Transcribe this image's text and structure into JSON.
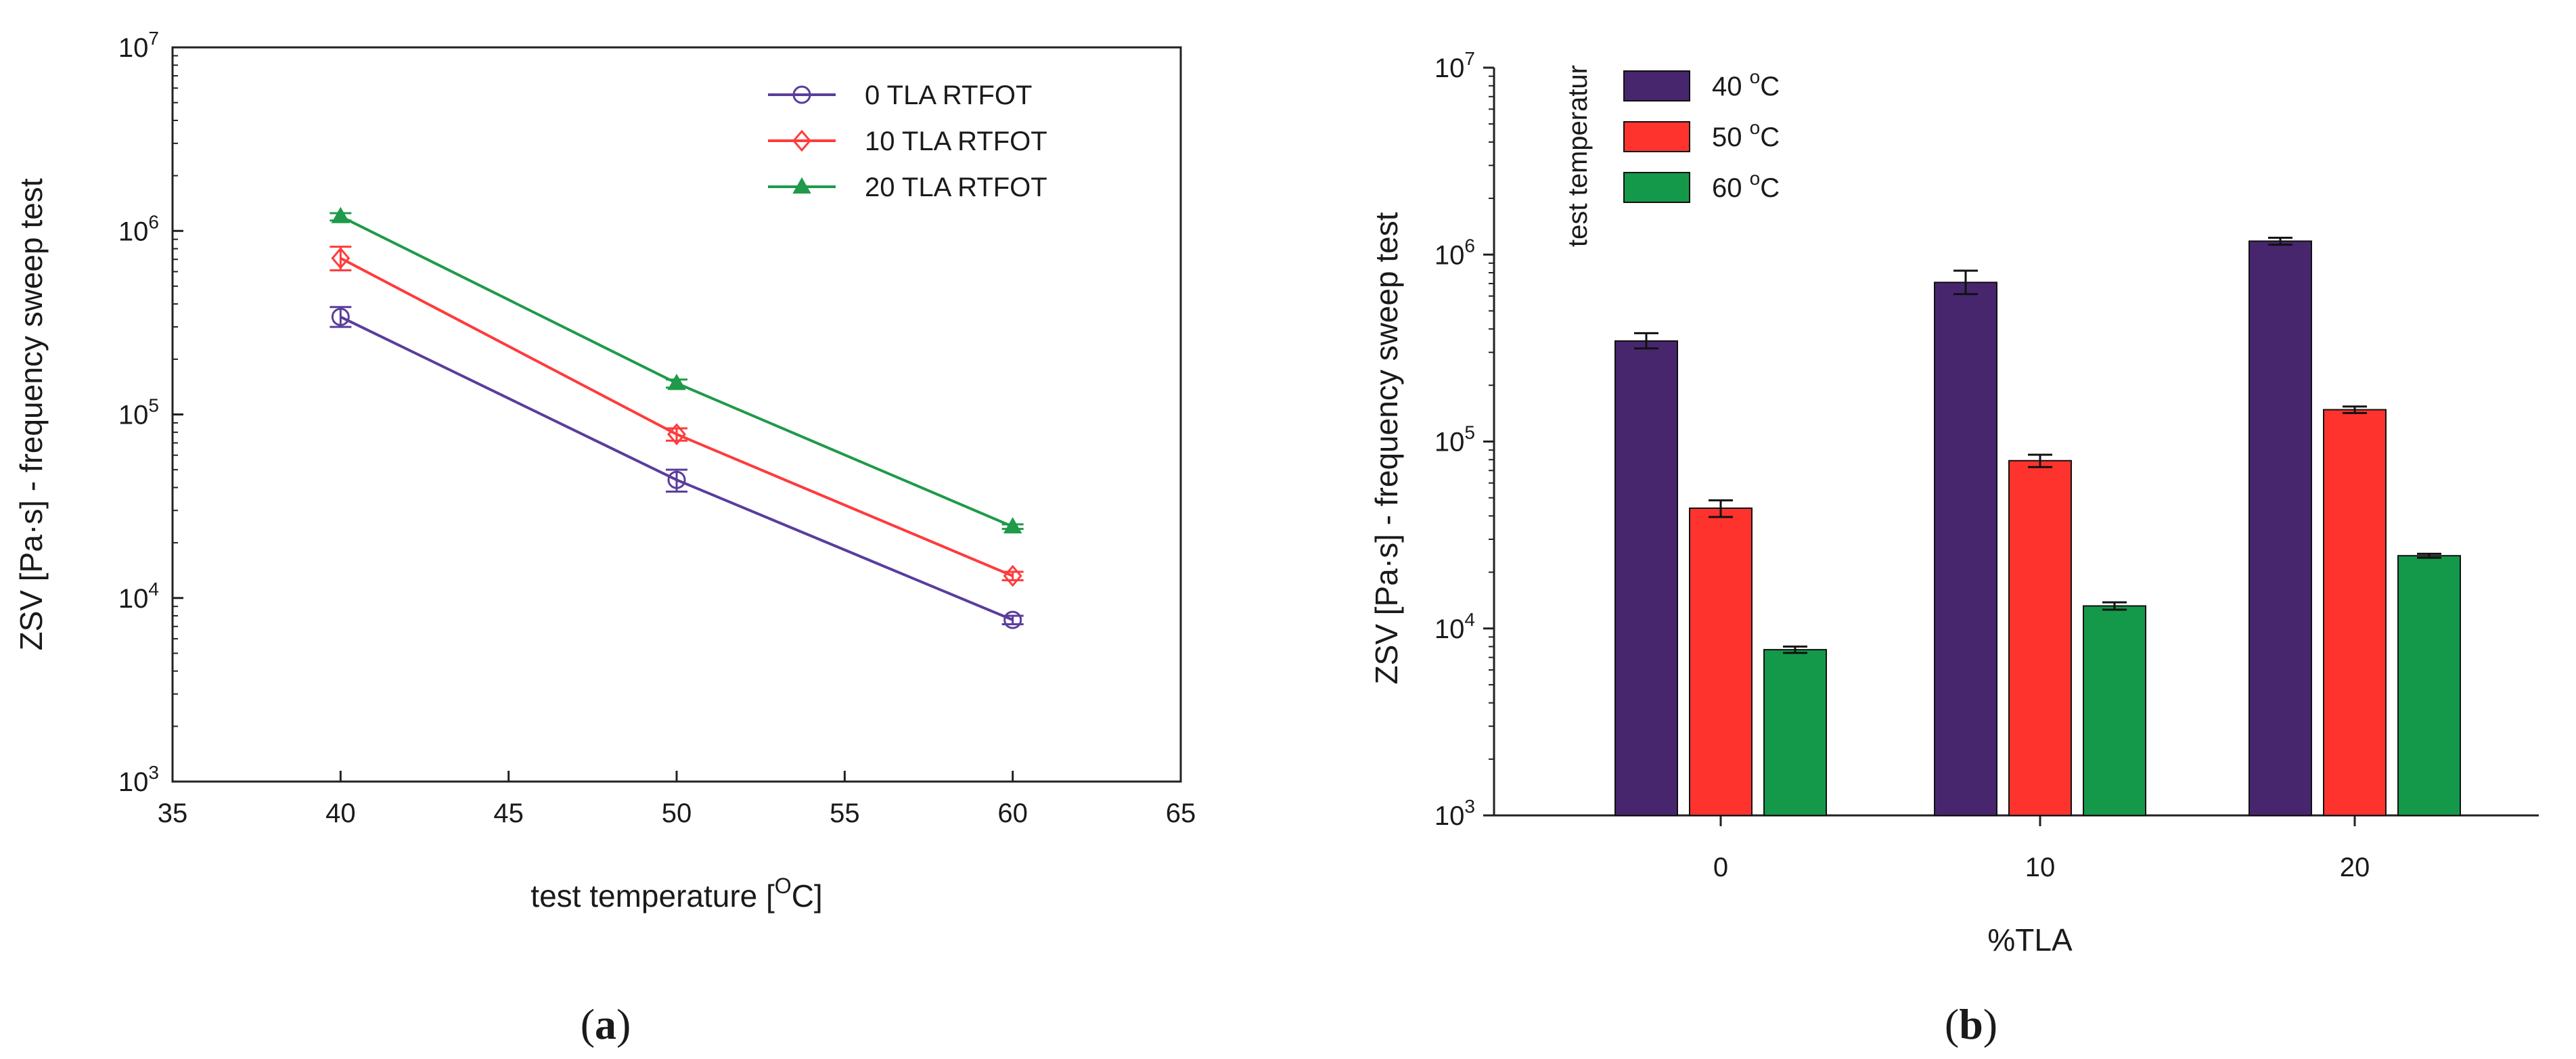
{
  "panels": [
    {
      "label": "a"
    },
    {
      "label": "b"
    }
  ],
  "chart_data": [
    {
      "type": "line",
      "xlabel": "test temperature [",
      "xlabel_unit_sup": "O",
      "xlabel_unit_tail": "C]",
      "ylabel": "ZSV [Pa·s] - frequency sweep test",
      "xlim": [
        35,
        65
      ],
      "xticks": [
        35,
        40,
        45,
        50,
        55,
        60,
        65
      ],
      "yscale": "log",
      "ylim": [
        1000,
        10000000
      ],
      "yticks": [
        {
          "base": "10",
          "exp": "3",
          "value": 1000
        },
        {
          "base": "10",
          "exp": "4",
          "value": 10000
        },
        {
          "base": "10",
          "exp": "5",
          "value": 100000
        },
        {
          "base": "10",
          "exp": "6",
          "value": 1000000
        },
        {
          "base": "10",
          "exp": "7",
          "value": 10000000
        }
      ],
      "legend_position": "top-right",
      "grid": false,
      "x": [
        40,
        50,
        60
      ],
      "series": [
        {
          "name": "0 TLA RTFOT",
          "color": "#5a3d9c",
          "marker": "circle",
          "values": [
            340000,
            44000,
            7600
          ],
          "error_low": [
            300000,
            38000,
            7200
          ],
          "error_high": [
            385000,
            50000,
            8000
          ]
        },
        {
          "name": "10 TLA RTFOT",
          "color": "#ff3b3b",
          "marker": "diamond",
          "values": [
            710000,
            78000,
            13200
          ],
          "error_low": [
            610000,
            72000,
            12500
          ],
          "error_high": [
            820000,
            84000,
            13900
          ]
        },
        {
          "name": "20 TLA RTFOT",
          "color": "#1f9a4a",
          "marker": "triangle",
          "values": [
            1200000,
            148000,
            24500
          ],
          "error_low": [
            1140000,
            140000,
            23800
          ],
          "error_high": [
            1250000,
            155000,
            25200
          ]
        }
      ]
    },
    {
      "type": "bar",
      "xlabel": "%TLA",
      "ylabel": "ZSV [Pa·s] - frequency sweep test",
      "legend_title": "test temperatur",
      "categories": [
        "0",
        "10",
        "20"
      ],
      "yscale": "log",
      "ylim": [
        1000,
        10000000
      ],
      "yticks": [
        {
          "base": "10",
          "exp": "3",
          "value": 1000
        },
        {
          "base": "10",
          "exp": "4",
          "value": 10000
        },
        {
          "base": "10",
          "exp": "5",
          "value": 100000
        },
        {
          "base": "10",
          "exp": "6",
          "value": 1000000
        },
        {
          "base": "10",
          "exp": "7",
          "value": 10000000
        }
      ],
      "legend_position": "top-left",
      "grid": false,
      "series": [
        {
          "name": "40",
          "unit_sup": "o",
          "unit_tail": "C",
          "color": "#47266e",
          "values": [
            345000,
            710000,
            1180000
          ],
          "error_low": [
            315000,
            615000,
            1130000
          ],
          "error_high": [
            380000,
            820000,
            1230000
          ]
        },
        {
          "name": "50",
          "unit_sup": "o",
          "unit_tail": "C",
          "color": "#ff332e",
          "values": [
            44000,
            79000,
            148000
          ],
          "error_low": [
            39500,
            73000,
            142000
          ],
          "error_high": [
            48500,
            85000,
            154000
          ]
        },
        {
          "name": "60",
          "unit_sup": "o",
          "unit_tail": "C",
          "color": "#14994a",
          "values": [
            7700,
            13200,
            24500
          ],
          "error_low": [
            7400,
            12600,
            23900
          ],
          "error_high": [
            8000,
            13800,
            25100
          ]
        }
      ]
    }
  ]
}
